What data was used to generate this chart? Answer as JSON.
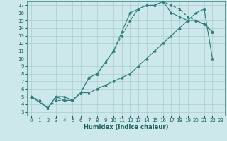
{
  "xlabel": "Humidex (Indice chaleur)",
  "bg_color": "#cce8ea",
  "grid_color": "#aacccc",
  "line_color": "#2e7c7c",
  "xlim": [
    -0.5,
    23.5
  ],
  "ylim": [
    2.5,
    17.5
  ],
  "xticks": [
    0,
    1,
    2,
    3,
    4,
    5,
    6,
    7,
    8,
    9,
    10,
    11,
    12,
    13,
    14,
    15,
    16,
    17,
    18,
    19,
    20,
    21,
    22,
    23
  ],
  "yticks": [
    3,
    4,
    5,
    6,
    7,
    8,
    9,
    10,
    11,
    12,
    13,
    14,
    15,
    16,
    17
  ],
  "line1_dashed": {
    "x": [
      0,
      1,
      2,
      3,
      4,
      5,
      6,
      7,
      8,
      9,
      10,
      11,
      12,
      13,
      14,
      15,
      16,
      17,
      18,
      19,
      20,
      21,
      22
    ],
    "y": [
      5,
      4.5,
      3.5,
      4.5,
      4.5,
      4.5,
      5.5,
      7.5,
      8.0,
      9.5,
      11.0,
      13.0,
      15.0,
      16.5,
      17.0,
      17.0,
      17.5,
      17.0,
      16.5,
      15.5,
      15.0,
      14.5,
      13.5
    ]
  },
  "line2_solid_steep": {
    "x": [
      0,
      2,
      3,
      4,
      5,
      6,
      7,
      8,
      9,
      10,
      11,
      12,
      13,
      14,
      15,
      16,
      17,
      18,
      19,
      20,
      21,
      22
    ],
    "y": [
      5,
      3.5,
      5.0,
      4.5,
      4.5,
      5.5,
      7.5,
      8.0,
      9.5,
      11.0,
      13.5,
      16.0,
      16.5,
      17.0,
      17.0,
      17.5,
      16.0,
      15.5,
      15.0,
      15.0,
      14.5,
      13.5
    ]
  },
  "line3_solid_flat": {
    "x": [
      0,
      2,
      3,
      4,
      5,
      6,
      7,
      8,
      9,
      10,
      11,
      12,
      13,
      14,
      15,
      16,
      17,
      18,
      19,
      20,
      21,
      22
    ],
    "y": [
      5,
      3.5,
      5.0,
      5.0,
      4.5,
      5.5,
      5.5,
      6.0,
      6.5,
      7.0,
      7.5,
      8.0,
      9.0,
      10.0,
      11.0,
      12.0,
      13.0,
      14.0,
      15.0,
      16.0,
      16.5,
      10.0
    ]
  }
}
